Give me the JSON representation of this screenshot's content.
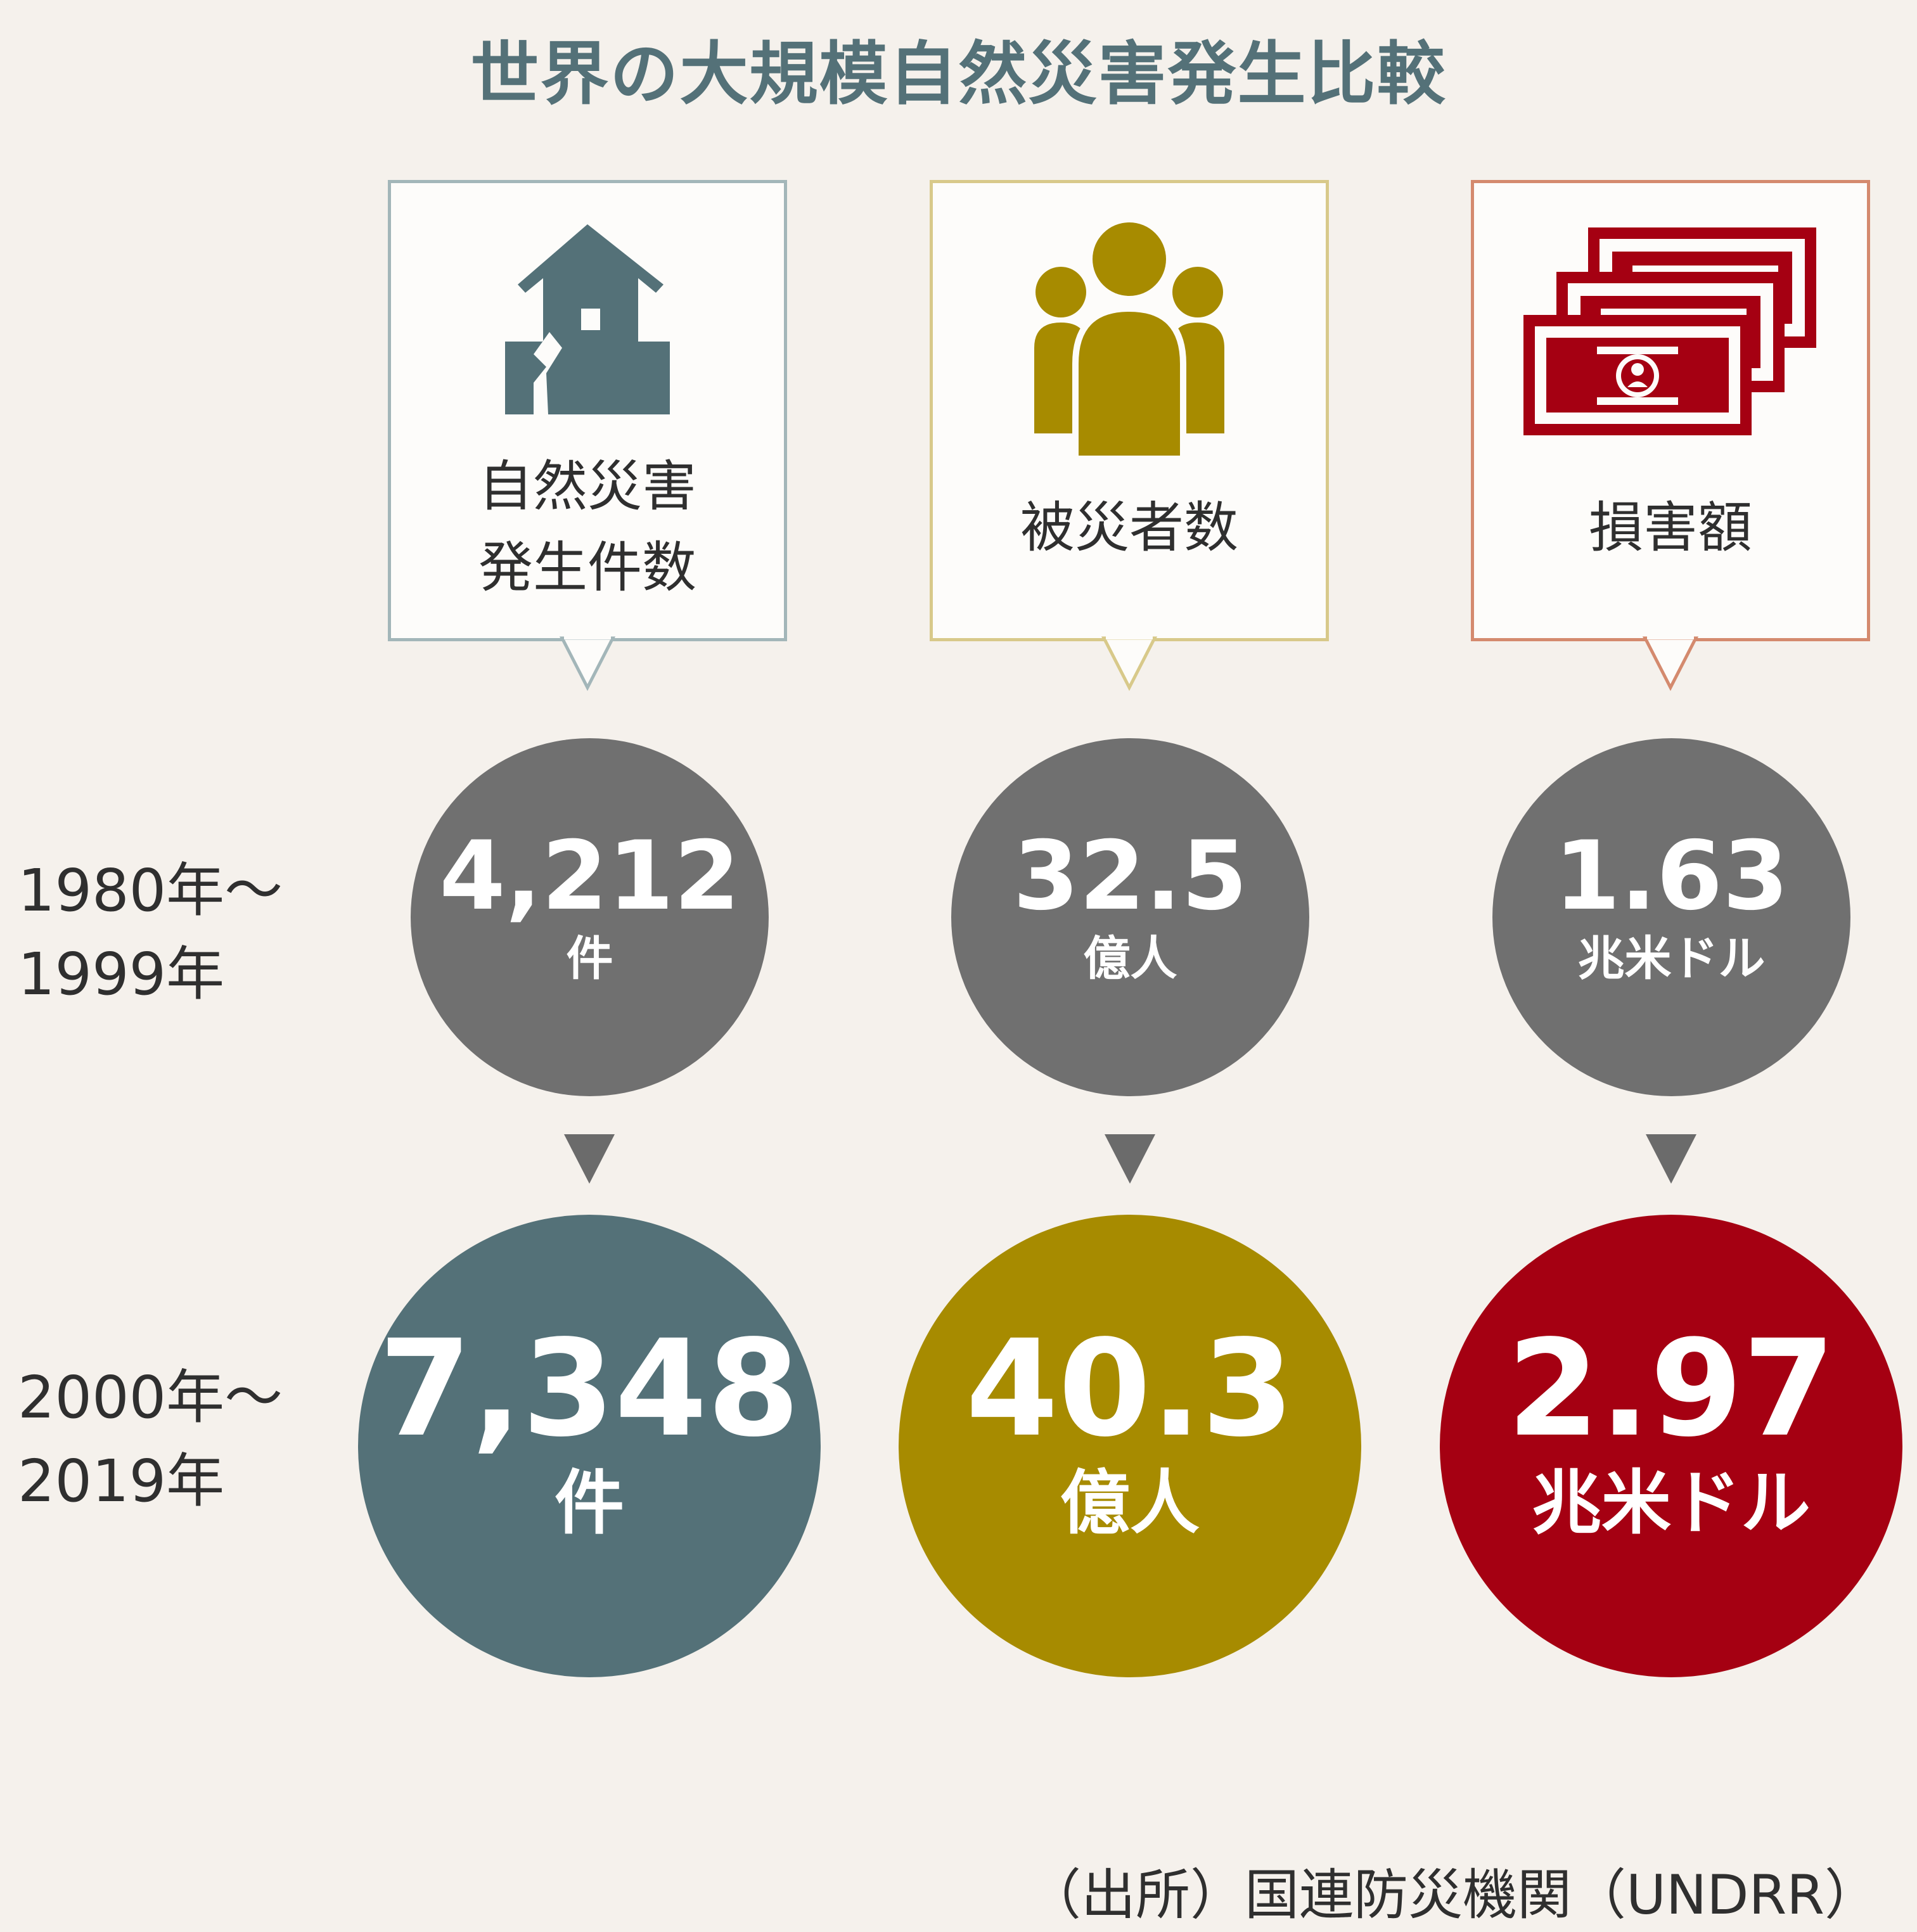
{
  "title": "世界の大規模自然災害発生比較",
  "periods": [
    {
      "line1": "1980年～",
      "line2": "1999年"
    },
    {
      "line1": "2000年～",
      "line2": "2019年"
    }
  ],
  "categories": [
    {
      "label_line1": "自然災害",
      "label_line2": "発生件数",
      "icon": "damaged-house-icon",
      "color": "#547178",
      "border": "#a3b6b9"
    },
    {
      "label_line1": "被災者数",
      "label_line2": "",
      "icon": "people-icon",
      "color": "#a78b00",
      "border": "#d8c98a"
    },
    {
      "label_line1": "損害額",
      "label_line2": "",
      "icon": "banknotes-icon",
      "color": "#a50012",
      "border": "#d48a6e"
    }
  ],
  "values": {
    "period1": [
      {
        "value": "4,212",
        "unit": "件"
      },
      {
        "value": "32.5",
        "unit": "億人"
      },
      {
        "value": "1.63",
        "unit": "兆米ドル"
      }
    ],
    "period2": [
      {
        "value": "7,348",
        "unit": "件"
      },
      {
        "value": "40.3",
        "unit": "億人"
      },
      {
        "value": "2.97",
        "unit": "兆米ドル"
      }
    ]
  },
  "source": "（出所）国連防災機関（UNDRR）",
  "chart_data": {
    "type": "table",
    "title": "世界の大規模自然災害発生比較",
    "categories": [
      "自然災害発生件数",
      "被災者数",
      "損害額"
    ],
    "units": [
      "件",
      "億人",
      "兆米ドル"
    ],
    "series": [
      {
        "name": "1980年～1999年",
        "values": [
          4212,
          32.5,
          1.63
        ]
      },
      {
        "name": "2000年～2019年",
        "values": [
          7348,
          40.3,
          2.97
        ]
      }
    ]
  }
}
